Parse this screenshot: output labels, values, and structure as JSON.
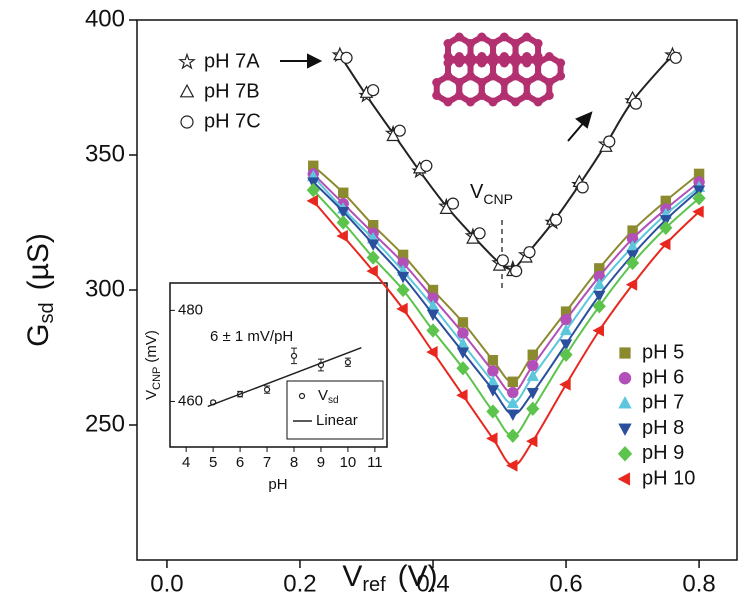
{
  "chart_data": [
    {
      "type": "scatter",
      "xlabel": {
        "main": "V",
        "sub": "ref",
        "unit": "(V)"
      },
      "ylabel": {
        "main": "G",
        "sub": "sd",
        "unit": "(µS)"
      },
      "xlim": [
        -0.045,
        0.857
      ],
      "ylim": [
        200,
        400
      ],
      "xticks": [
        {
          "value": 0,
          "label": "0.0"
        },
        0.2,
        0.4,
        0.6,
        0.8
      ],
      "yticks": [
        250,
        300,
        350,
        400
      ],
      "annotation": {
        "main": "V",
        "sub": "CNP"
      },
      "series": [
        {
          "name": "pH 7A",
          "color": "#222222",
          "marker": "star",
          "filled": false,
          "line": true,
          "legend": "left",
          "x": [
            0.26,
            0.3,
            0.34,
            0.38,
            0.42,
            0.46,
            0.5,
            0.52,
            0.54,
            0.58,
            0.62,
            0.66,
            0.7,
            0.76
          ],
          "values": [
            387,
            372,
            358,
            344,
            331,
            320,
            310,
            308,
            313,
            325,
            339,
            354,
            370,
            387
          ]
        },
        {
          "name": "pH 7B",
          "color": "#222222",
          "marker": "triangle-up",
          "filled": false,
          "line": false,
          "legend": "left",
          "x": [
            0.26,
            0.3,
            0.34,
            0.38,
            0.42,
            0.46,
            0.5,
            0.52,
            0.54,
            0.58,
            0.62,
            0.66,
            0.7,
            0.76
          ],
          "values": [
            387,
            373,
            357,
            345,
            330,
            319,
            309,
            307,
            312,
            326,
            340,
            353,
            371,
            387
          ]
        },
        {
          "name": "pH 7C",
          "color": "#222222",
          "marker": "circle",
          "filled": false,
          "line": false,
          "legend": "left",
          "x": [
            0.27,
            0.31,
            0.35,
            0.39,
            0.43,
            0.47,
            0.505,
            0.525,
            0.545,
            0.585,
            0.625,
            0.665,
            0.705,
            0.765
          ],
          "values": [
            386,
            374,
            359,
            346,
            332,
            321,
            311,
            307,
            314,
            326,
            338,
            355,
            369,
            386
          ]
        },
        {
          "name": "pH 5",
          "color": "#8c8a2e",
          "marker": "square",
          "filled": true,
          "line": true,
          "legend": "right",
          "x": [
            0.22,
            0.265,
            0.31,
            0.355,
            0.4,
            0.445,
            0.49,
            0.52,
            0.55,
            0.6,
            0.65,
            0.7,
            0.75,
            0.8
          ],
          "values": [
            346,
            336,
            324,
            313,
            300,
            288,
            274,
            266,
            276,
            292,
            308,
            322,
            333,
            343
          ]
        },
        {
          "name": "pH 6",
          "color": "#b24fb8",
          "marker": "circle",
          "filled": true,
          "line": true,
          "legend": "right",
          "x": [
            0.22,
            0.265,
            0.31,
            0.355,
            0.4,
            0.445,
            0.49,
            0.52,
            0.55,
            0.6,
            0.65,
            0.7,
            0.75,
            0.8
          ],
          "values": [
            343,
            332,
            321,
            310,
            297,
            284,
            270,
            262,
            272,
            289,
            305,
            319,
            330,
            340
          ]
        },
        {
          "name": "pH 7",
          "color": "#5cc7dc",
          "marker": "triangle-up",
          "filled": true,
          "line": true,
          "legend": "right",
          "x": [
            0.22,
            0.265,
            0.31,
            0.355,
            0.4,
            0.445,
            0.49,
            0.52,
            0.55,
            0.6,
            0.65,
            0.7,
            0.75,
            0.8
          ],
          "values": [
            342,
            330,
            319,
            307,
            294,
            280,
            266,
            258,
            268,
            285,
            302,
            316,
            328,
            338
          ]
        },
        {
          "name": "pH 8",
          "color": "#2a4f9c",
          "marker": "triangle-down",
          "filled": true,
          "line": true,
          "legend": "right",
          "x": [
            0.22,
            0.265,
            0.31,
            0.355,
            0.4,
            0.445,
            0.49,
            0.52,
            0.55,
            0.6,
            0.65,
            0.7,
            0.75,
            0.8
          ],
          "values": [
            340,
            329,
            317,
            305,
            291,
            277,
            263,
            254,
            262,
            280,
            298,
            313,
            326,
            337
          ]
        },
        {
          "name": "pH 9",
          "color": "#5cc44c",
          "marker": "diamond",
          "filled": true,
          "line": true,
          "legend": "right",
          "x": [
            0.22,
            0.265,
            0.31,
            0.355,
            0.4,
            0.445,
            0.49,
            0.52,
            0.55,
            0.6,
            0.65,
            0.7,
            0.75,
            0.8
          ],
          "values": [
            337,
            325,
            312,
            300,
            285,
            271,
            255,
            246,
            256,
            276,
            294,
            310,
            323,
            334
          ]
        },
        {
          "name": "pH 10",
          "color": "#e8281e",
          "marker": "triangle-left",
          "filled": true,
          "line": true,
          "legend": "right",
          "x": [
            0.22,
            0.265,
            0.31,
            0.355,
            0.4,
            0.445,
            0.49,
            0.52,
            0.55,
            0.6,
            0.65,
            0.7,
            0.75,
            0.8
          ],
          "values": [
            333,
            320,
            307,
            293,
            277,
            261,
            245,
            235,
            244,
            265,
            285,
            302,
            317,
            329
          ]
        }
      ]
    },
    {
      "type": "errorbar",
      "xlabel": "pH",
      "ylabel": {
        "main": "V",
        "sub": "CNP",
        "unit": "(mV)"
      },
      "xlim": [
        3.4,
        11.45
      ],
      "ylim": [
        450,
        486
      ],
      "xticks": [
        4,
        5,
        6,
        7,
        8,
        9,
        10,
        11
      ],
      "yticks": [
        460,
        480
      ],
      "annotation": "6 ± 1 mV/pH",
      "series": [
        {
          "name": "V",
          "name_sub": "sd",
          "color": "#222222",
          "marker": "circle",
          "x": [
            5,
            6,
            7,
            8,
            9,
            10
          ],
          "values": [
            459.8,
            461.6,
            462.6,
            470,
            468,
            468.6
          ],
          "errors": [
            0.3,
            0.6,
            0.8,
            1.7,
            1.3,
            0.9
          ]
        },
        {
          "name": "Linear",
          "color": "#222222",
          "marker": "none",
          "x": [
            4.8,
            10.5
          ],
          "values": [
            458.9,
            471.8
          ]
        }
      ]
    }
  ]
}
